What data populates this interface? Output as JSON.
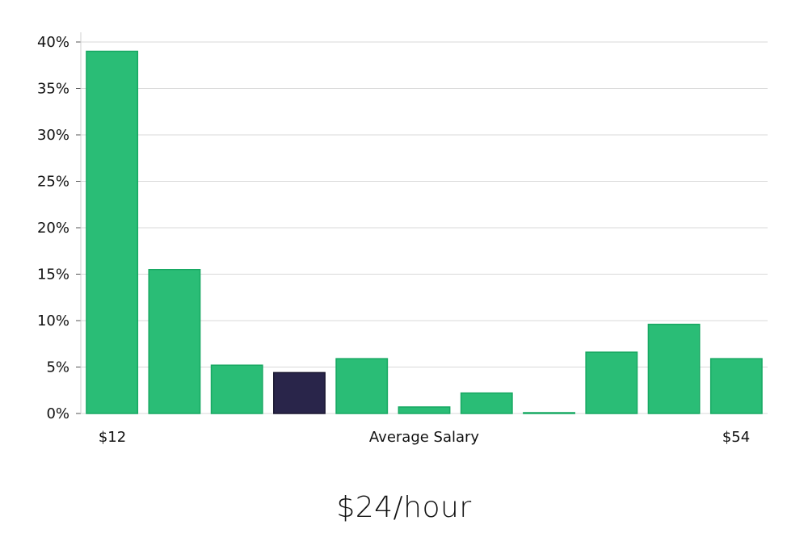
{
  "chart_data": {
    "type": "bar",
    "values": [
      39.0,
      15.5,
      5.2,
      4.4,
      5.9,
      0.7,
      2.2,
      0.05,
      6.6,
      9.6,
      5.9
    ],
    "highlight_index": 3,
    "ylim": [
      0,
      40
    ],
    "yticks": [
      0,
      5,
      10,
      15,
      20,
      25,
      30,
      35,
      40
    ],
    "ytick_labels": [
      "0%",
      "5%",
      "10%",
      "15%",
      "20%",
      "25%",
      "30%",
      "35%",
      "40%"
    ],
    "x_min_label": "$12",
    "xlabel": "Average Salary",
    "x_max_label": "$54",
    "grid": true,
    "colors": {
      "bar": "#2abd76",
      "bar_edge": "#17a862",
      "highlight": "#29254a",
      "highlight_edge": "#1a1730",
      "grid": "#d9d9d9",
      "axis": "#cfcfcf"
    }
  },
  "salary_value": "$24/hour"
}
